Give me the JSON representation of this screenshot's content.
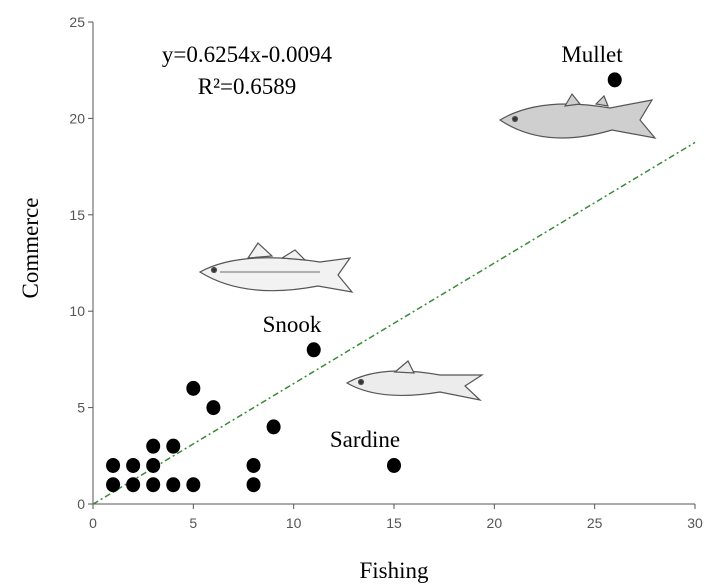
{
  "chart_data": {
    "type": "scatter",
    "x_label": "Fishing",
    "y_label": "Commerce",
    "x": [
      1,
      1,
      2,
      2,
      3,
      3,
      3,
      4,
      4,
      5,
      5,
      6,
      8,
      8,
      9,
      11,
      15,
      26
    ],
    "values": [
      1,
      2,
      1,
      2,
      1,
      2,
      3,
      1,
      3,
      1,
      6,
      5,
      1,
      2,
      4,
      8,
      2,
      22
    ],
    "color": "#000000",
    "xlim": [
      0,
      30
    ],
    "xticks": [
      0,
      5,
      10,
      15,
      20,
      25,
      30
    ],
    "ylim": [
      0,
      25
    ],
    "yticks": [
      0,
      5,
      10,
      15,
      20,
      25
    ],
    "trendline": {
      "equation": "y=0.6254x-0.0094",
      "r_squared": "R²=0.6589",
      "slope": 0.6254,
      "intercept": -0.0094,
      "color": "#3a8a3a"
    },
    "annotations": [
      "Mullet",
      "Snook",
      "Sardine"
    ]
  }
}
